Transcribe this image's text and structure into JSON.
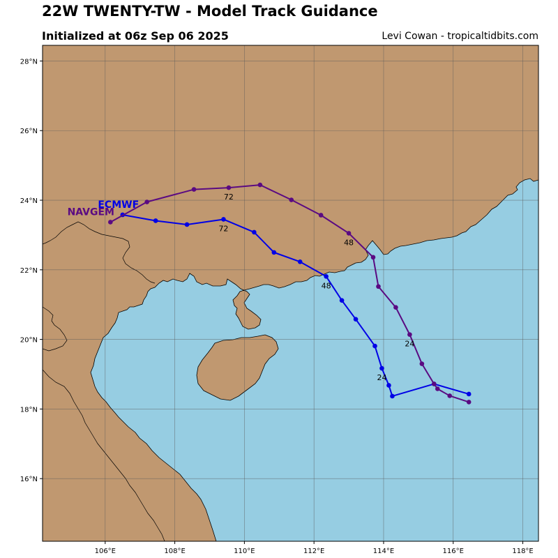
{
  "header": {
    "title": "22W TWENTY-TW - Model Track Guidance",
    "subtitle": "Initialized at 06z Sep 06 2025",
    "credit": "Levi Cowan - tropicaltidbits.com"
  },
  "colors": {
    "land": "#c09870",
    "water": "#96cde2",
    "grid": "#5a5a5a",
    "ecmwf": "#0000e6",
    "navgem": "#5a0a82"
  },
  "map": {
    "lon_range": [
      104.2,
      118.45
    ],
    "lat_range": [
      14.2,
      28.45
    ],
    "lon_ticks": [
      {
        "value": 106,
        "label": "106°E"
      },
      {
        "value": 108,
        "label": "108°E"
      },
      {
        "value": 110,
        "label": "110°E"
      },
      {
        "value": 112,
        "label": "112°E"
      },
      {
        "value": 114,
        "label": "114°E"
      },
      {
        "value": 116,
        "label": "116°E"
      },
      {
        "value": 118,
        "label": "118°E"
      }
    ],
    "lat_ticks": [
      {
        "value": 16,
        "label": "16°N"
      },
      {
        "value": 18,
        "label": "18°N"
      },
      {
        "value": 20,
        "label": "20°N"
      },
      {
        "value": 22,
        "label": "22°N"
      },
      {
        "value": 24,
        "label": "24°N"
      },
      {
        "value": 26,
        "label": "26°N"
      },
      {
        "value": 28,
        "label": "28°N"
      }
    ]
  },
  "tracks": [
    {
      "name": "ECMWF",
      "color": "#0000e6",
      "label": "ECMWF",
      "points": [
        [
          116.45,
          18.43
        ],
        [
          115.45,
          18.72
        ],
        [
          114.25,
          18.37
        ],
        [
          114.15,
          18.68
        ],
        [
          113.95,
          19.17
        ],
        [
          113.75,
          19.81
        ],
        [
          113.2,
          20.58
        ],
        [
          112.8,
          21.12
        ],
        [
          112.35,
          21.81
        ],
        [
          111.6,
          22.23
        ],
        [
          110.85,
          22.5
        ],
        [
          110.28,
          23.08
        ],
        [
          109.4,
          23.45
        ],
        [
          108.35,
          23.3
        ],
        [
          107.45,
          23.41
        ],
        [
          106.5,
          23.58
        ]
      ],
      "labels": [
        {
          "lon": 113.95,
          "lat": 19.17,
          "text": "24"
        },
        {
          "lon": 112.35,
          "lat": 21.81,
          "text": "48"
        },
        {
          "lon": 109.4,
          "lat": 23.45,
          "text": "72"
        }
      ]
    },
    {
      "name": "NAVGEM",
      "color": "#5a0a82",
      "label": "NAVGEM",
      "points": [
        [
          116.45,
          18.2
        ],
        [
          115.9,
          18.38
        ],
        [
          115.55,
          18.58
        ],
        [
          115.45,
          18.72
        ],
        [
          115.1,
          19.3
        ],
        [
          114.75,
          20.14
        ],
        [
          114.35,
          20.92
        ],
        [
          113.85,
          21.52
        ],
        [
          113.7,
          22.36
        ],
        [
          113.0,
          23.05
        ],
        [
          112.2,
          23.57
        ],
        [
          111.35,
          24.01
        ],
        [
          110.45,
          24.44
        ],
        [
          109.55,
          24.36
        ],
        [
          108.55,
          24.31
        ],
        [
          107.2,
          23.95
        ],
        [
          106.15,
          23.37
        ]
      ],
      "labels": [
        {
          "lon": 114.75,
          "lat": 20.14,
          "text": "24"
        },
        {
          "lon": 113.0,
          "lat": 23.05,
          "text": "48"
        },
        {
          "lon": 109.55,
          "lat": 24.36,
          "text": "72"
        }
      ]
    }
  ]
}
